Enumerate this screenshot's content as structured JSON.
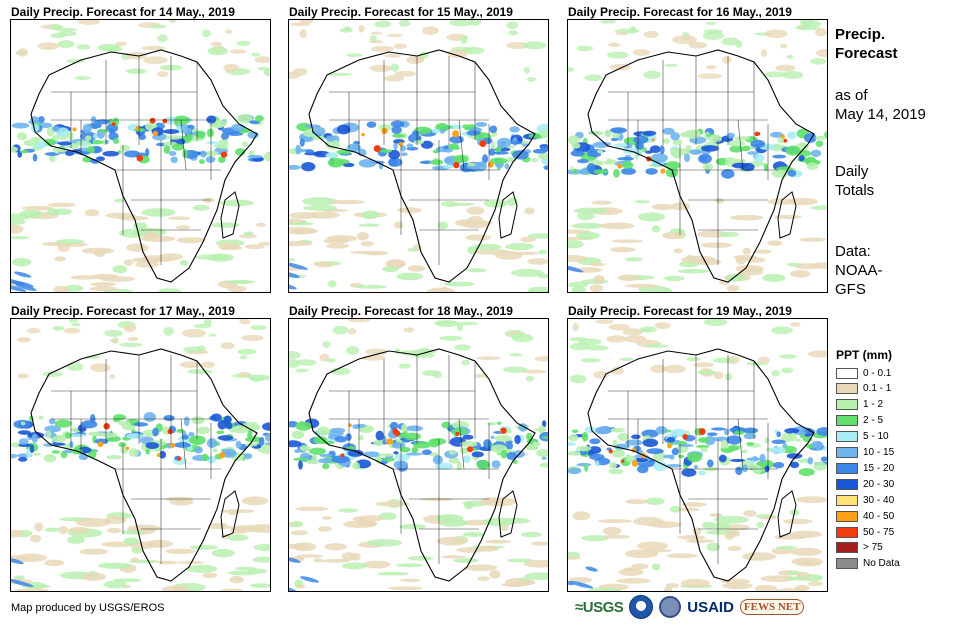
{
  "panels": [
    {
      "title": "Daily Precip. Forecast for 14 May., 2019"
    },
    {
      "title": "Daily Precip. Forecast for 15 May., 2019"
    },
    {
      "title": "Daily Precip. Forecast for 16 May., 2019"
    },
    {
      "title": "Daily Precip. Forecast for 17 May., 2019"
    },
    {
      "title": "Daily Precip. Forecast for 18 May., 2019"
    },
    {
      "title": "Daily Precip. Forecast for 19 May., 2019"
    }
  ],
  "sidebar": {
    "heading_line1": "Precip.",
    "heading_line2": "Forecast",
    "asof_line1": "as of",
    "asof_line2": "May 14, 2019",
    "type_line1": "Daily",
    "type_line2": "Totals",
    "source_line1": "Data:",
    "source_line2": "NOAA-",
    "source_line3": "GFS"
  },
  "legend": {
    "title": "PPT (mm)",
    "items": [
      {
        "label": "0 - 0.1",
        "color": "#ffffff"
      },
      {
        "label": "0.1 - 1",
        "color": "#e8d8b8"
      },
      {
        "label": "1 - 2",
        "color": "#b8f0b0"
      },
      {
        "label": "2 - 5",
        "color": "#5ee06a"
      },
      {
        "label": "5 - 10",
        "color": "#a8ecf5"
      },
      {
        "label": "10 - 15",
        "color": "#6fb4ee"
      },
      {
        "label": "15 - 20",
        "color": "#3c86e8"
      },
      {
        "label": "20 - 30",
        "color": "#1a57d6"
      },
      {
        "label": "30 - 40",
        "color": "#ffe27a"
      },
      {
        "label": "40 - 50",
        "color": "#ffa21a"
      },
      {
        "label": "50 - 75",
        "color": "#f23c0c"
      },
      {
        "label": "> 75",
        "color": "#a41d1d"
      },
      {
        "label": "No Data",
        "color": "#8c8c8c"
      }
    ]
  },
  "footer": {
    "credit": "Map produced by USGS/EROS",
    "usgs": "≈USGS",
    "usaid": "USAID",
    "fews": "FEWS NET"
  }
}
